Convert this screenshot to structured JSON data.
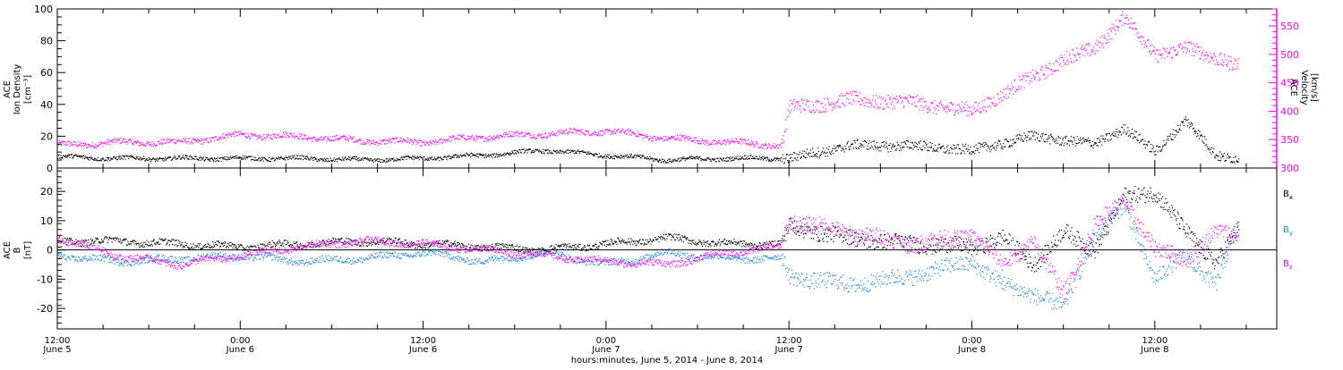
{
  "figure": {
    "xaxis_title": "hours:minutes, June  5, 2014 - June  8, 2014",
    "x_ticks": [
      {
        "t": "12:00",
        "d": "June 5"
      },
      {
        "t": "0:00",
        "d": "June 6"
      },
      {
        "t": "12:00",
        "d": "June 6"
      },
      {
        "t": "0:00",
        "d": "June 7"
      },
      {
        "t": "12:00",
        "d": "June 7"
      },
      {
        "t": "0:00",
        "d": "June 8"
      },
      {
        "t": "12:00",
        "d": "June 8"
      }
    ],
    "colors": {
      "black": "#000000",
      "magenta": "#ff00ff",
      "blue": "#1f8ae0"
    }
  },
  "chart_data": [
    {
      "type": "scatter",
      "title": "",
      "xlim_hours": [
        0,
        80
      ],
      "x_unit": "hours since June 5 12:00",
      "left_axis": {
        "label_lines": [
          "ACE",
          "Ion Density",
          "[cm⁻³]"
        ],
        "ylim": [
          0,
          100
        ],
        "ticks": [
          0,
          20,
          40,
          60,
          80,
          100
        ]
      },
      "right_axis": {
        "label_lines": [
          "ACE",
          "Velocity",
          "[km/s]"
        ],
        "ylim": [
          300,
          580
        ],
        "ticks": [
          300,
          350,
          400,
          450,
          500,
          550
        ]
      },
      "series": [
        {
          "name": "Ion Density",
          "axis": "left",
          "color": "#000000",
          "x": [
            0,
            4,
            8,
            12,
            16,
            20,
            24,
            28,
            32,
            36,
            40,
            44,
            48,
            52,
            56,
            60,
            64,
            68,
            70,
            72,
            74,
            76,
            77.5
          ],
          "y": [
            7,
            6,
            6,
            6,
            6,
            5,
            6,
            8,
            11,
            8,
            5,
            6,
            6,
            14,
            14,
            11,
            20,
            15,
            25,
            10,
            30,
            8,
            6
          ]
        },
        {
          "name": "Velocity",
          "axis": "right",
          "color": "#ff00ff",
          "x": [
            0,
            4,
            8,
            12,
            16,
            20,
            24,
            28,
            32,
            36,
            40,
            44,
            47.5,
            48,
            52,
            56,
            60,
            62,
            64,
            66,
            68,
            70,
            72,
            74,
            76,
            77.5
          ],
          "y": [
            340,
            345,
            345,
            358,
            355,
            348,
            345,
            355,
            360,
            365,
            352,
            345,
            340,
            405,
            420,
            415,
            400,
            430,
            460,
            490,
            510,
            565,
            500,
            510,
            495,
            480
          ]
        }
      ]
    },
    {
      "type": "scatter",
      "title": "",
      "xlim_hours": [
        0,
        80
      ],
      "x_unit": "hours since June 5 12:00",
      "left_axis": {
        "label_lines": [
          "ACE",
          "B",
          "[nT]"
        ],
        "ylim": [
          -27,
          28
        ],
        "ticks": [
          -20,
          -10,
          0,
          10,
          20
        ]
      },
      "zero_line": true,
      "series": [
        {
          "name": "Bx",
          "label_main": "B",
          "label_sub": "x",
          "color": "#000000",
          "x": [
            0,
            4,
            8,
            12,
            16,
            20,
            24,
            28,
            32,
            36,
            40,
            44,
            47.5,
            48,
            52,
            56,
            60,
            62,
            64,
            66,
            68,
            70,
            72,
            74,
            76,
            77.5
          ],
          "y": [
            3,
            3,
            2,
            1,
            2,
            3,
            2,
            1,
            0,
            2,
            4,
            2,
            2,
            8,
            4,
            2,
            1,
            4,
            -5,
            6,
            0,
            18,
            20,
            6,
            -4,
            7
          ]
        },
        {
          "name": "By",
          "label_main": "B",
          "label_sub": "y",
          "color": "#1f8ae0",
          "x": [
            0,
            4,
            8,
            12,
            16,
            20,
            24,
            28,
            32,
            36,
            40,
            44,
            47.5,
            48,
            52,
            56,
            60,
            62,
            64,
            66,
            68,
            70,
            72,
            74,
            76,
            77.5
          ],
          "y": [
            -2,
            -4,
            -3,
            -2,
            -4,
            -3,
            -1,
            -4,
            -1,
            -5,
            -1,
            -3,
            -3,
            -9,
            -12,
            -9,
            -4,
            -12,
            -15,
            -20,
            5,
            15,
            -10,
            -2,
            -12,
            8
          ]
        },
        {
          "name": "Bz",
          "label_main": "B",
          "label_sub": "z",
          "color": "#ff00ff",
          "x": [
            0,
            4,
            8,
            12,
            16,
            20,
            24,
            28,
            32,
            36,
            40,
            44,
            47.5,
            48,
            52,
            56,
            60,
            62,
            64,
            66,
            68,
            70,
            72,
            74,
            76,
            77.5
          ],
          "y": [
            4,
            -2,
            -5,
            -2,
            1,
            3,
            2,
            0,
            -2,
            -4,
            -5,
            -1,
            1,
            10,
            6,
            2,
            5,
            -5,
            3,
            -15,
            8,
            17,
            0,
            -3,
            6,
            5
          ]
        }
      ]
    }
  ]
}
